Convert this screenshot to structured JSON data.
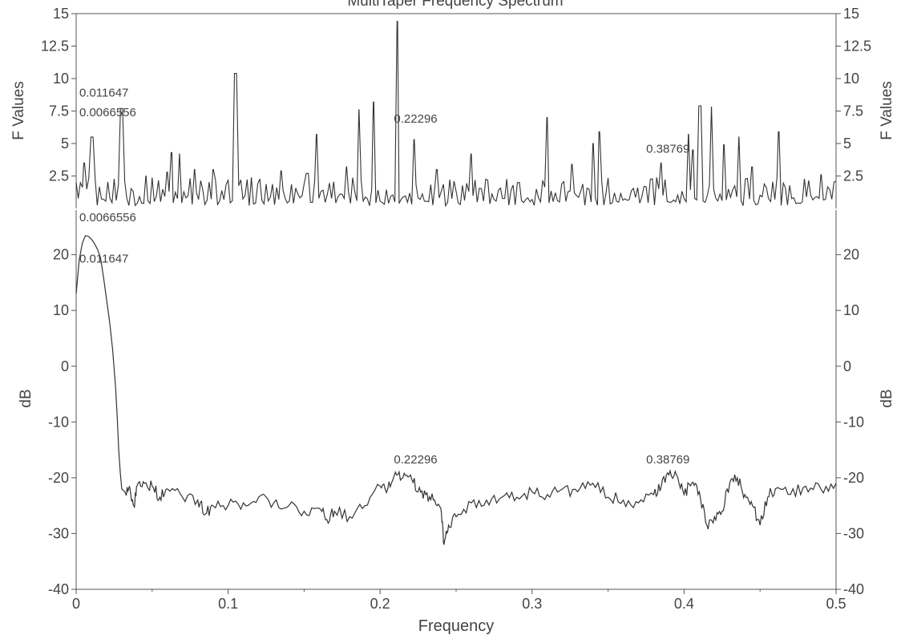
{
  "chart_data": [
    {
      "type": "line",
      "panel": "f-values",
      "title": "MultiTaper Frequency Spectrum",
      "xlabel": "",
      "ylabel": "F Values",
      "ylabel_right": "F Values",
      "xlim": [
        0,
        0.5
      ],
      "ylim": [
        0,
        15
      ],
      "yticks": [
        2.5,
        5,
        7.5,
        10,
        12.5,
        15
      ],
      "ytick_labels": [
        "2.5",
        "5",
        "7.5",
        "10",
        "12.5",
        "15"
      ],
      "grid": false,
      "series": [
        {
          "peaks": [
            {
              "x": 0.005,
              "y": 3.5
            },
            {
              "x": 0.0105,
              "y": 5.5
            },
            {
              "x": 0.03,
              "y": 7.7
            },
            {
              "x": 0.046,
              "y": 2.5
            },
            {
              "x": 0.06,
              "y": 2.8
            },
            {
              "x": 0.063,
              "y": 4.3
            },
            {
              "x": 0.068,
              "y": 4.2
            },
            {
              "x": 0.078,
              "y": 3.0
            },
            {
              "x": 0.09,
              "y": 3.0
            },
            {
              "x": 0.105,
              "y": 10.4
            },
            {
              "x": 0.135,
              "y": 2.9
            },
            {
              "x": 0.152,
              "y": 2.7
            },
            {
              "x": 0.158,
              "y": 5.7
            },
            {
              "x": 0.178,
              "y": 3.2
            },
            {
              "x": 0.186,
              "y": 7.6
            },
            {
              "x": 0.1955,
              "y": 8.2
            },
            {
              "x": 0.2115,
              "y": 14.4
            },
            {
              "x": 0.2225,
              "y": 5.3
            },
            {
              "x": 0.237,
              "y": 3.0
            },
            {
              "x": 0.26,
              "y": 4.2
            },
            {
              "x": 0.31,
              "y": 7.0
            },
            {
              "x": 0.326,
              "y": 3.4
            },
            {
              "x": 0.34,
              "y": 5.0
            },
            {
              "x": 0.344,
              "y": 5.9
            },
            {
              "x": 0.385,
              "y": 3.5
            },
            {
              "x": 0.403,
              "y": 5.7
            },
            {
              "x": 0.406,
              "y": 4.5
            },
            {
              "x": 0.4105,
              "y": 7.9
            },
            {
              "x": 0.418,
              "y": 7.8
            },
            {
              "x": 0.426,
              "y": 4.9
            },
            {
              "x": 0.436,
              "y": 5.5
            },
            {
              "x": 0.445,
              "y": 3.2
            },
            {
              "x": 0.462,
              "y": 5.9
            },
            {
              "x": 0.49,
              "y": 2.6
            }
          ]
        }
      ],
      "annotations": [
        {
          "text": "0.011647",
          "x": 0.0005,
          "y": 8.6
        },
        {
          "text": "0.0066556",
          "x": 0.0005,
          "y": 7.1
        },
        {
          "text": "0.22296",
          "x": 0.2075,
          "y": 6.6
        },
        {
          "text": "0.38769",
          "x": 0.3735,
          "y": 4.3
        }
      ]
    },
    {
      "type": "line",
      "panel": "spectrum-db",
      "xlabel": "Frequency",
      "ylabel": "dB",
      "ylabel_right": "dB",
      "xlim": [
        0,
        0.5
      ],
      "ylim": [
        -40,
        28
      ],
      "xticks": [
        0,
        0.1,
        0.2,
        0.3,
        0.4,
        0.5
      ],
      "xtick_labels": [
        "0",
        "0.1",
        "0.2",
        "0.3",
        "0.4",
        "0.5"
      ],
      "yticks": [
        -40,
        -30,
        -20,
        -10,
        0,
        10,
        20
      ],
      "ytick_labels": [
        "-40",
        "-30",
        "-20",
        "-10",
        "0",
        "10",
        "20"
      ],
      "grid": false,
      "series": [
        {
          "x": [
            0,
            0.002,
            0.004,
            0.006,
            0.008,
            0.01,
            0.012,
            0.014,
            0.016,
            0.018,
            0.02,
            0.022,
            0.024,
            0.026,
            0.027,
            0.028,
            0.029,
            0.03,
            0.032,
            0.035,
            0.038,
            0.04,
            0.045,
            0.05,
            0.055,
            0.06,
            0.07,
            0.08,
            0.085,
            0.09,
            0.1,
            0.11,
            0.12,
            0.13,
            0.14,
            0.15,
            0.16,
            0.165,
            0.17,
            0.18,
            0.19,
            0.2,
            0.205,
            0.21,
            0.215,
            0.22,
            0.225,
            0.23,
            0.235,
            0.24,
            0.242,
            0.245,
            0.25,
            0.26,
            0.27,
            0.28,
            0.29,
            0.3,
            0.31,
            0.32,
            0.33,
            0.34,
            0.35,
            0.36,
            0.37,
            0.38,
            0.385,
            0.39,
            0.395,
            0.4,
            0.405,
            0.41,
            0.415,
            0.42,
            0.425,
            0.43,
            0.435,
            0.44,
            0.445,
            0.45,
            0.455,
            0.46,
            0.47,
            0.48,
            0.49,
            0.5
          ],
          "values": [
            13,
            19,
            22,
            23.4,
            23.3,
            22.8,
            22,
            21,
            19.5,
            16,
            12,
            8,
            3,
            -4,
            -9,
            -15,
            -19,
            -22,
            -22.5,
            -21.5,
            -25,
            -21.5,
            -21,
            -21.5,
            -23.5,
            -22,
            -23.5,
            -24,
            -26.5,
            -25,
            -25,
            -24.5,
            -23.5,
            -24.5,
            -25,
            -26,
            -25.5,
            -27.5,
            -26,
            -27,
            -25,
            -21.5,
            -22,
            -19,
            -20,
            -19.5,
            -22.5,
            -23,
            -24,
            -25.5,
            -32,
            -28.5,
            -27,
            -24.5,
            -24,
            -23.5,
            -23.5,
            -22.5,
            -23,
            -22,
            -22.5,
            -21,
            -23.5,
            -24,
            -24.5,
            -23,
            -21.5,
            -19.5,
            -19.5,
            -23,
            -21,
            -22.5,
            -28.5,
            -27,
            -26,
            -21,
            -20,
            -23,
            -25,
            -28.5,
            -23.5,
            -22,
            -23,
            -21.5,
            -22,
            -21
          ]
        }
      ],
      "annotations": [
        {
          "text": "0.0066556",
          "x": 0.0005,
          "y": 26
        },
        {
          "text": "0.011647",
          "x": 0.0005,
          "y": 18.6
        },
        {
          "text": "0.22296",
          "x": 0.2075,
          "y": -17.4
        },
        {
          "text": "0.38769",
          "x": 0.3735,
          "y": -17.4
        }
      ]
    }
  ]
}
